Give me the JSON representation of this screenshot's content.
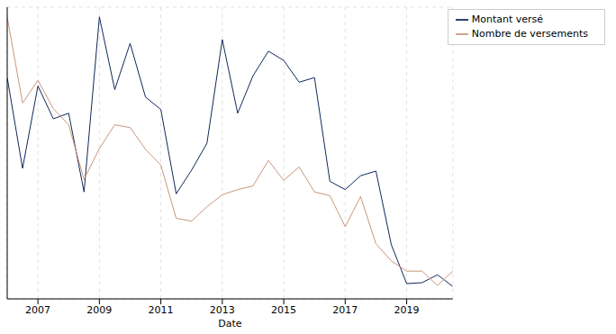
{
  "chart_data": {
    "type": "line",
    "x_label": "Date",
    "x": [
      2006.0,
      2006.5,
      2007.0,
      2007.5,
      2008.0,
      2008.5,
      2009.0,
      2009.5,
      2010.0,
      2010.5,
      2011.0,
      2011.5,
      2012.0,
      2012.5,
      2013.0,
      2013.5,
      2014.0,
      2014.5,
      2015.0,
      2015.5,
      2016.0,
      2016.5,
      2017.0,
      2017.5,
      2018.0,
      2018.5,
      2019.0,
      2019.5,
      2020.0,
      2020.5
    ],
    "series": [
      {
        "name": "Montant versé",
        "color": "#10295a",
        "values": [
          5.18,
          3.22,
          5.0,
          4.29,
          4.41,
          2.71,
          6.49,
          4.92,
          5.92,
          4.76,
          4.49,
          2.67,
          3.18,
          3.76,
          6.0,
          4.41,
          5.22,
          5.75,
          5.55,
          5.08,
          5.18,
          2.94,
          2.76,
          3.06,
          3.16,
          1.57,
          0.73,
          0.75,
          0.92,
          0.67
        ]
      },
      {
        "name": "Nombre de versements",
        "color": "#c9977c",
        "values": [
          6.49,
          4.63,
          5.12,
          4.51,
          4.16,
          2.98,
          3.65,
          4.16,
          4.1,
          3.63,
          3.29,
          2.14,
          2.08,
          2.39,
          2.65,
          2.76,
          2.84,
          3.39,
          2.96,
          3.25,
          2.71,
          2.63,
          1.96,
          2.61,
          1.59,
          1.22,
          1.0,
          1.0,
          0.69,
          1.0
        ]
      }
    ],
    "xlim": [
      2006.0,
      2020.5
    ],
    "xticks": [
      2007,
      2009,
      2011,
      2013,
      2015,
      2017,
      2019
    ],
    "ylim": [
      0.4,
      6.7
    ],
    "yticks": [
      1,
      2,
      3,
      4,
      5,
      6
    ],
    "grid": true,
    "legend": "upper right",
    "tick_labels": "x"
  }
}
